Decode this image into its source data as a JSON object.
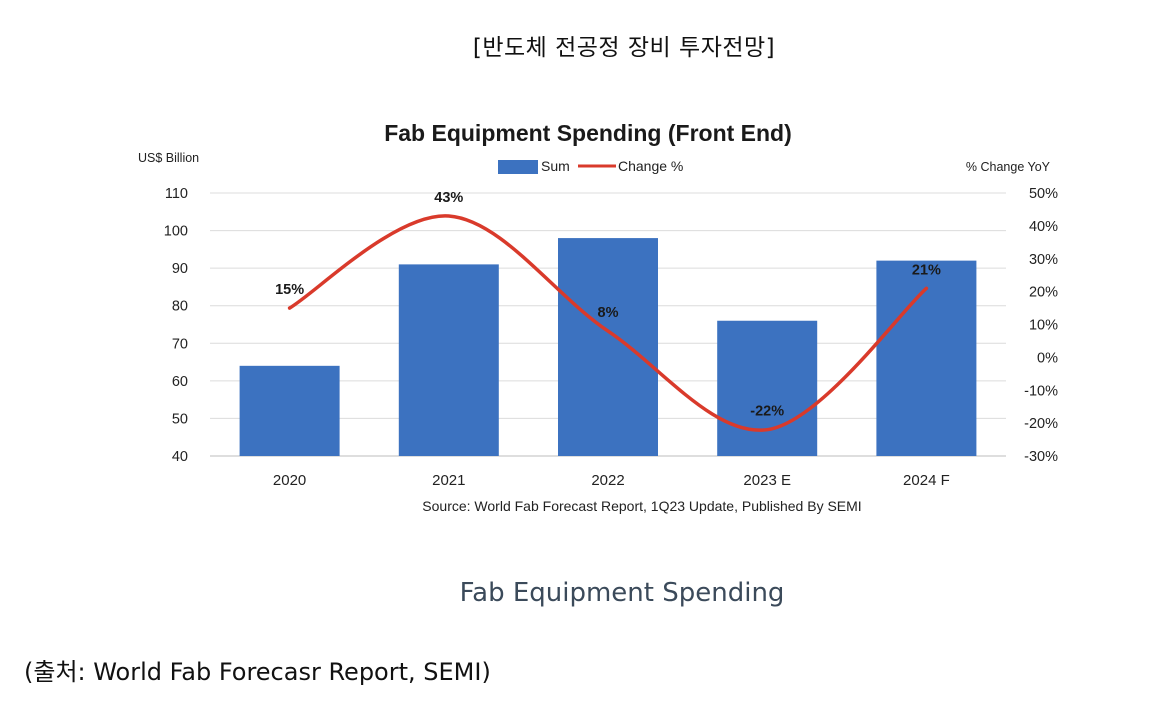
{
  "page": {
    "heading": "[반도체 전공정 장비 투자전망]",
    "caption": "Fab Equipment Spending",
    "source": "(출처: World Fab Forecasr Report, SEMI)"
  },
  "chart_data": {
    "type": "bar",
    "title": "Fab Equipment Spending (Front End)",
    "categories": [
      "2020",
      "2021",
      "2022",
      "2023 E",
      "2024 F"
    ],
    "series": [
      {
        "name": "Sum",
        "type": "bar",
        "axis": "left",
        "color": "#3c72c0",
        "values": [
          64,
          91,
          98,
          76,
          92
        ]
      },
      {
        "name": "Change %",
        "type": "line",
        "axis": "right",
        "color": "#d93a2b",
        "values": [
          15,
          43,
          8,
          -22,
          21
        ],
        "labels": [
          "15%",
          "43%",
          "8%",
          "-22%",
          "21%"
        ]
      }
    ],
    "ylabel": "US$ Billion",
    "y2label": "% Change YoY",
    "ylim": [
      40,
      110
    ],
    "yticks": [
      "110",
      "100",
      "90",
      "80",
      "70",
      "60",
      "50",
      "40"
    ],
    "y2lim": [
      -30,
      50
    ],
    "y2ticks": [
      "50%",
      "40%",
      "30%",
      "20%",
      "10%",
      "0%",
      "-10%",
      "-20%",
      "-30%"
    ],
    "grid": true,
    "legend": "top-center",
    "source_note": "Source: World Fab Forecast Report, 1Q23 Update, Published By SEMI"
  }
}
